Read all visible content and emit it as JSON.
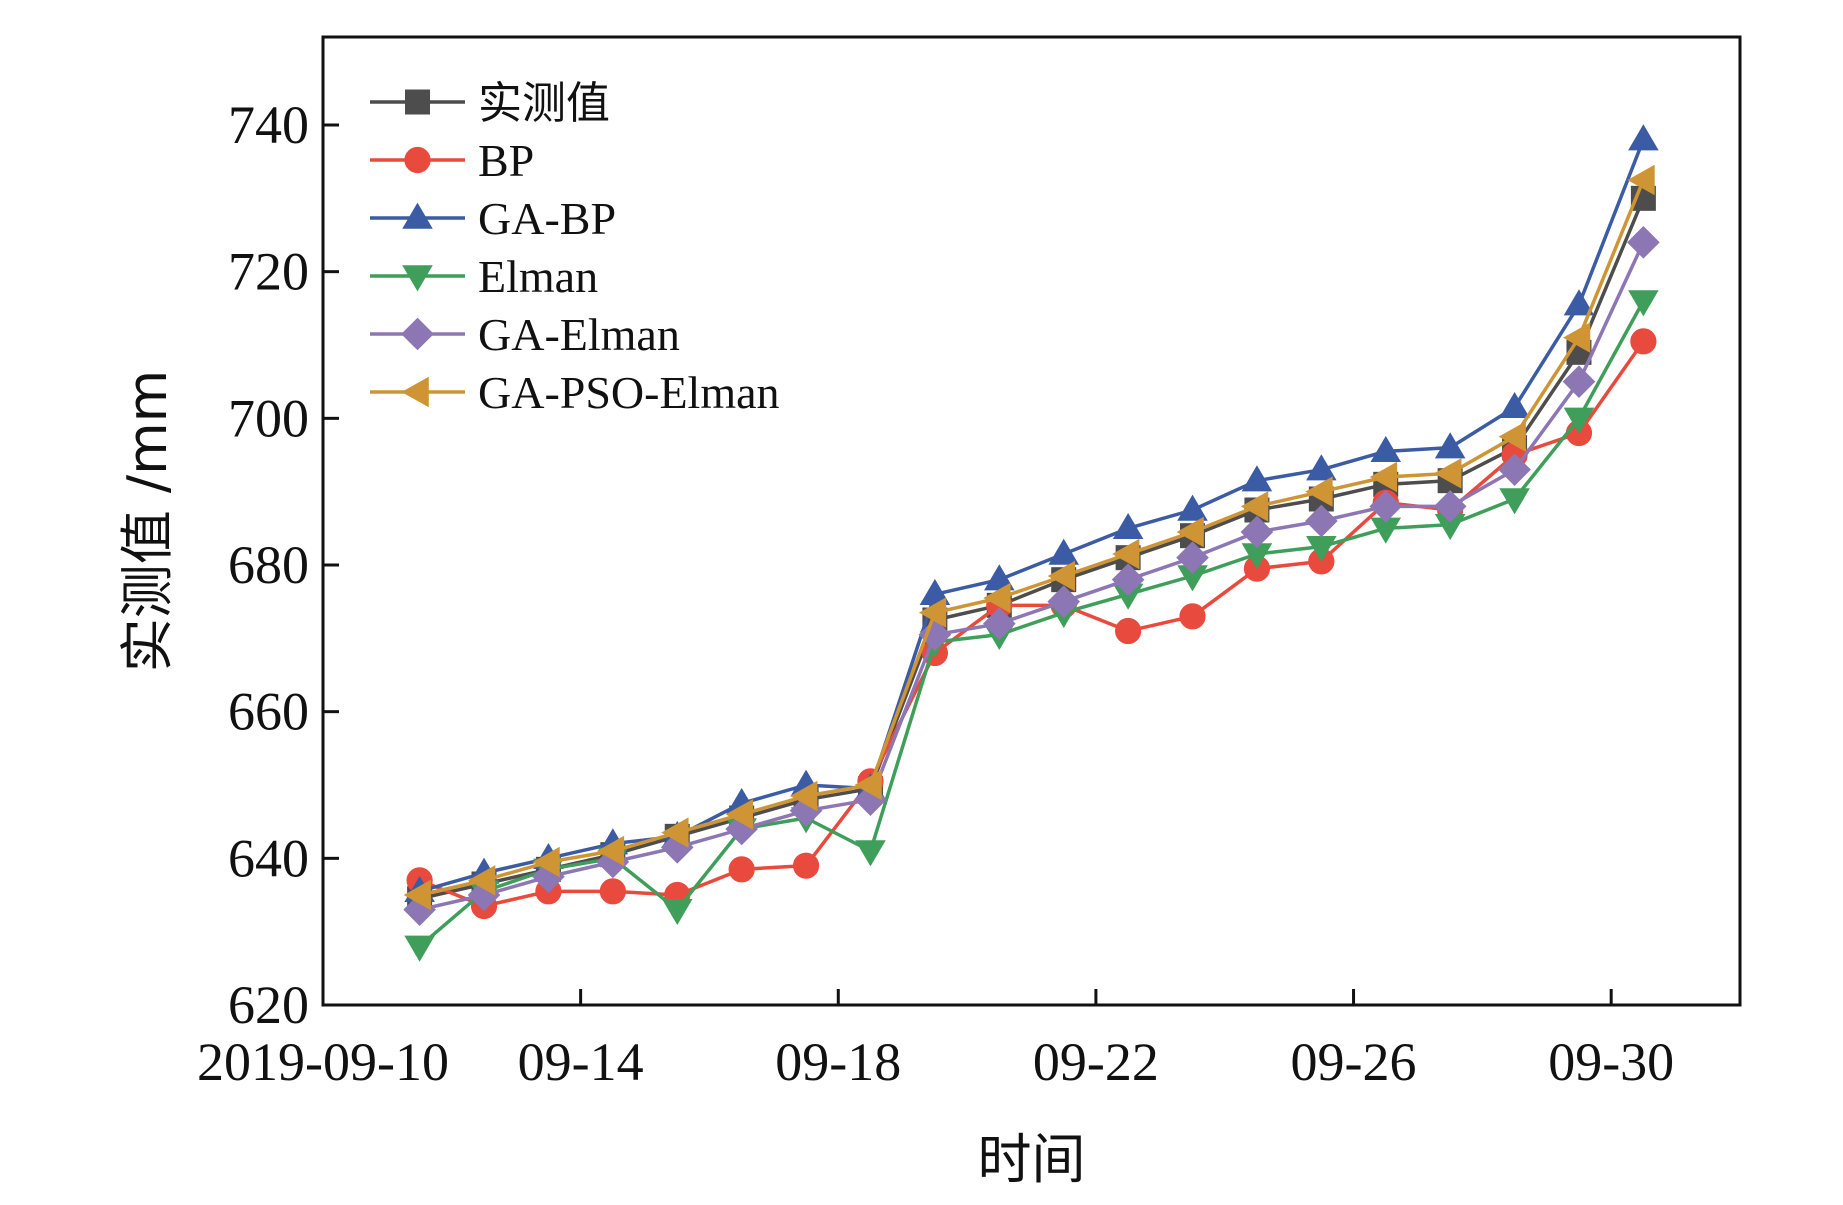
{
  "chart_data": {
    "type": "line",
    "title": "",
    "xlabel": "时间",
    "ylabel": "实测值 /mm",
    "xlim": [
      0,
      22
    ],
    "ylim": [
      620,
      752
    ],
    "x_ticks": [
      {
        "pos": 0,
        "label": "2019-09-10"
      },
      {
        "pos": 4,
        "label": "09-14"
      },
      {
        "pos": 8,
        "label": "09-18"
      },
      {
        "pos": 12,
        "label": "09-22"
      },
      {
        "pos": 16,
        "label": "09-26"
      },
      {
        "pos": 20,
        "label": "09-30"
      }
    ],
    "y_ticks": [
      620,
      640,
      660,
      680,
      700,
      720,
      740
    ],
    "x": [
      1.5,
      2.5,
      3.5,
      4.5,
      5.5,
      6.5,
      7.5,
      8.5,
      9.5,
      10.5,
      11.5,
      12.5,
      13.5,
      14.5,
      15.5,
      16.5,
      17.5,
      18.5,
      19.5,
      20.5
    ],
    "legend_position": "top-left",
    "series": [
      {
        "name": "实测值",
        "color": "#4d4d4d",
        "marker": "square",
        "values": [
          634.5,
          636.5,
          638.5,
          640.5,
          643,
          645.5,
          648,
          649.5,
          672.5,
          674.5,
          678,
          681,
          684,
          687.5,
          689,
          691,
          691.5,
          696,
          709,
          730
        ]
      },
      {
        "name": "BP",
        "color": "#e84a3d",
        "marker": "circle",
        "values": [
          637,
          633.5,
          635.5,
          635.5,
          635,
          638.5,
          639,
          650.5,
          668,
          674.5,
          674.5,
          671,
          673,
          679.5,
          680.5,
          688.5,
          687.5,
          695,
          698,
          710.5
        ]
      },
      {
        "name": "GA-BP",
        "color": "#3b5ba5",
        "marker": "triangle-up",
        "values": [
          635.5,
          638,
          640,
          642,
          643,
          647.5,
          650,
          649.5,
          676,
          678,
          681.5,
          685,
          687.5,
          691.5,
          693,
          695.5,
          696,
          701.5,
          715.5,
          738
        ]
      },
      {
        "name": "Elman",
        "color": "#3f9e5a",
        "marker": "triangle-down",
        "values": [
          628,
          635.5,
          638.5,
          640,
          633,
          644,
          645.5,
          641,
          669.5,
          670.5,
          673.5,
          676,
          678.5,
          681.5,
          682.5,
          685,
          685.5,
          689,
          700,
          716
        ]
      },
      {
        "name": "GA-Elman",
        "color": "#8d76b4",
        "marker": "diamond",
        "values": [
          633,
          635,
          637.5,
          639.5,
          641.5,
          644,
          646.5,
          648,
          670.5,
          672,
          675,
          678,
          681,
          684.5,
          686,
          688,
          688,
          693,
          705,
          724
        ]
      },
      {
        "name": "GA-PSO-Elman",
        "color": "#cf9534",
        "marker": "triangle-left",
        "values": [
          635,
          637,
          639.5,
          641,
          643.5,
          646,
          648.5,
          650,
          673.5,
          675.5,
          678.5,
          681.5,
          684.5,
          688,
          690,
          692,
          692.5,
          697.5,
          711,
          732.5
        ]
      }
    ]
  }
}
